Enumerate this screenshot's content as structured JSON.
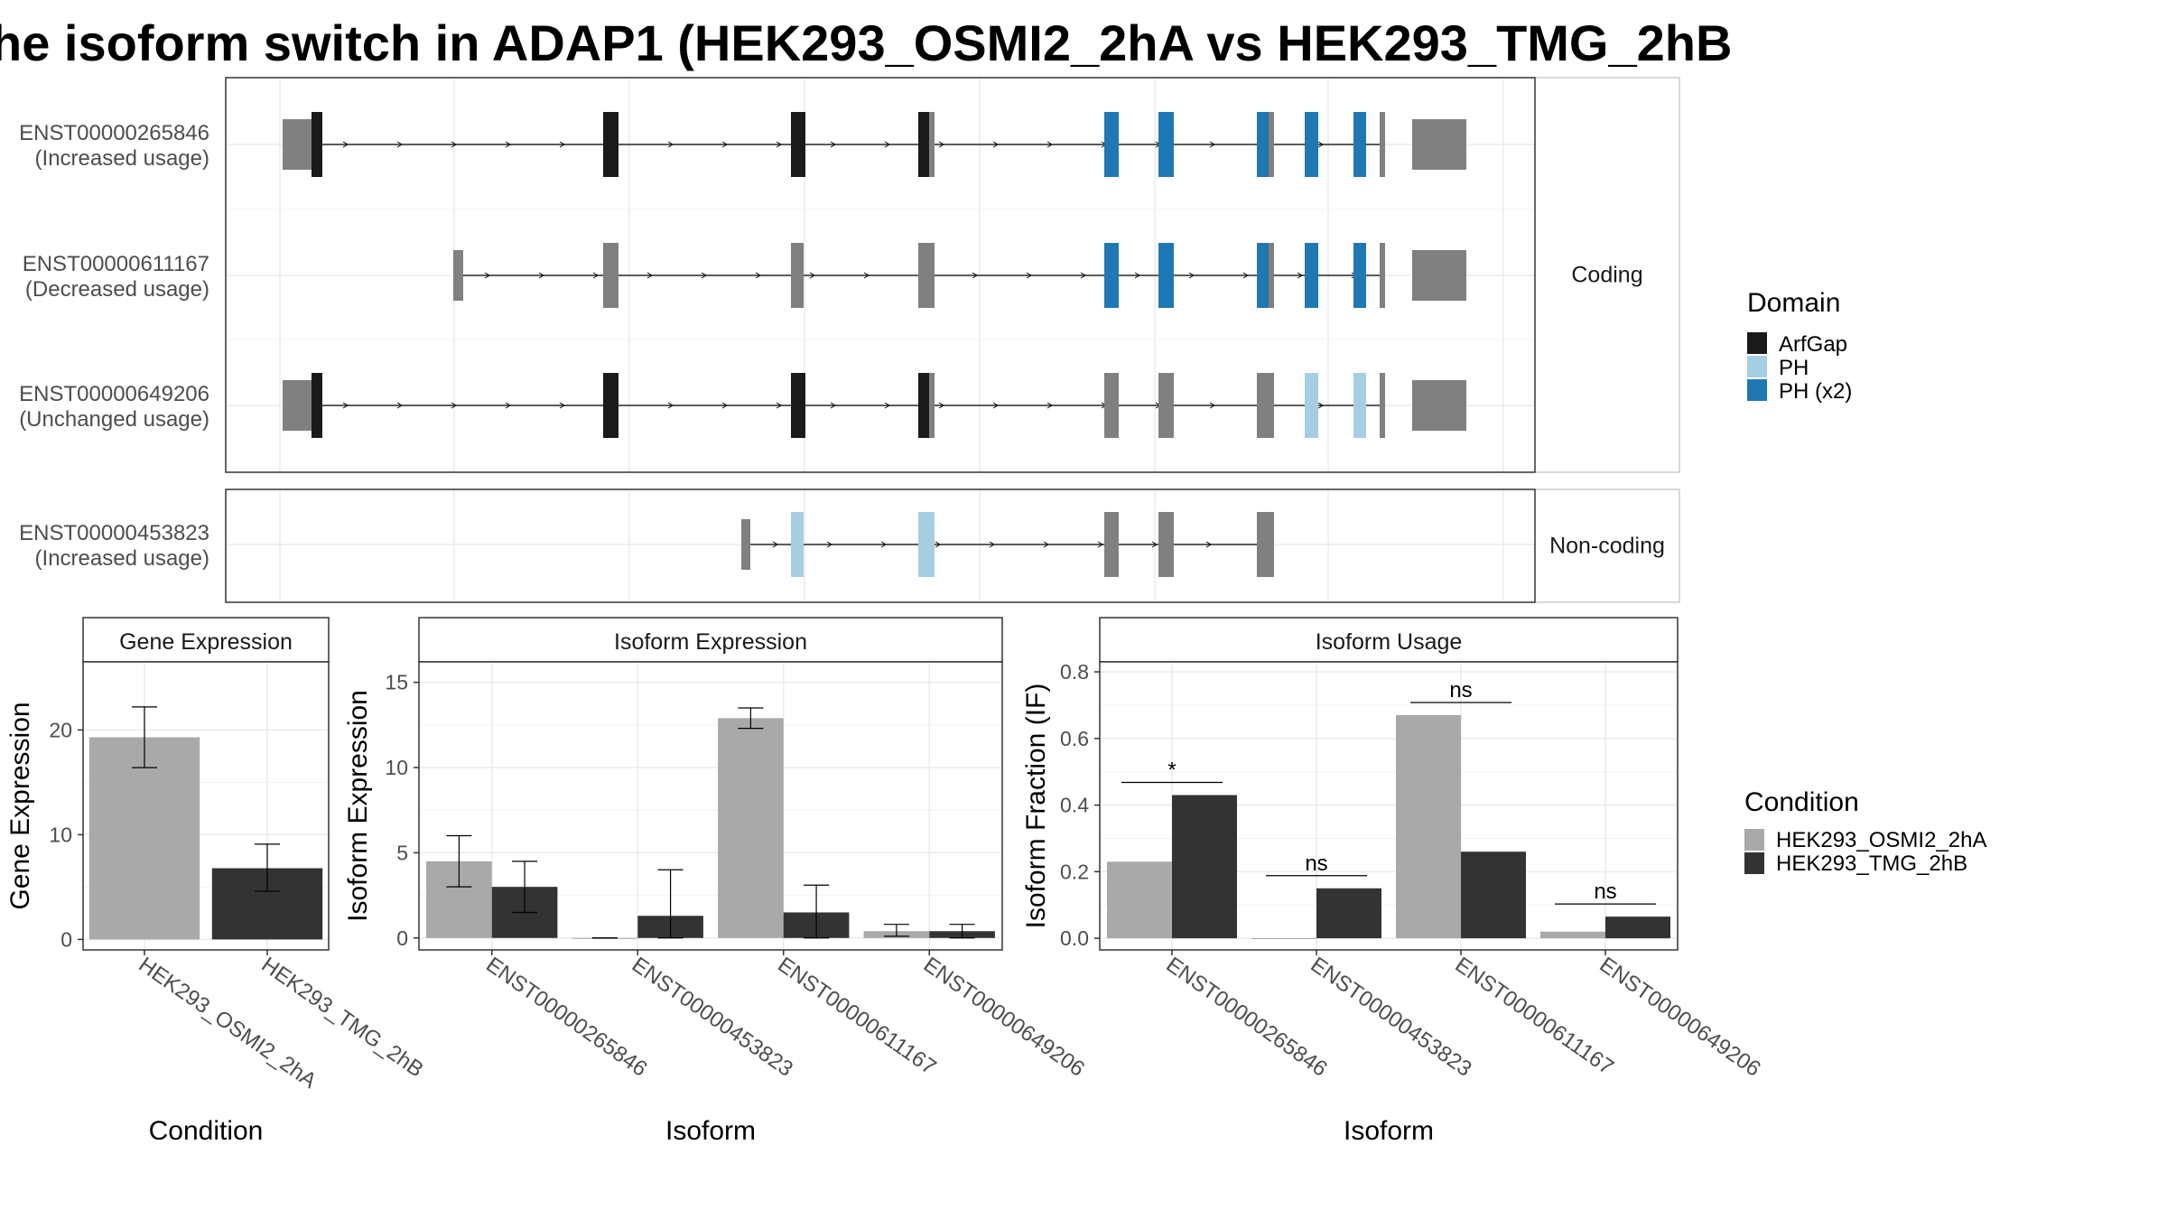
{
  "title": "he isoform switch in ADAP1 (HEK293_OSMI2_2hA vs HEK293_TMG_2hB",
  "colors": {
    "ArfGap": "#1a1a1a",
    "PH": "#a6cee3",
    "PH (x2)": "#1f78b4",
    "exon": "#808080",
    "HEK293_OSMI2_2hA": "#a9a9a9",
    "HEK293_TMG_2hB": "#333333"
  },
  "domain_legend": {
    "title": "Domain",
    "entries": [
      "ArfGap",
      "PH",
      "PH (x2)"
    ]
  },
  "condition_legend": {
    "title": "Condition",
    "entries": [
      "HEK293_OSMI2_2hA",
      "HEK293_TMG_2hB"
    ]
  },
  "structure_panels": [
    {
      "strip": "Coding",
      "transcripts": [
        {
          "label": "ENST00000265846",
          "usage": "(Increased usage)",
          "utr_start": true,
          "domains": [
            "ArfGap",
            "ArfGap",
            "ArfGap",
            "ArfGap",
            "PH (x2)",
            "PH (x2)",
            "PH (x2)",
            "PH (x2)",
            "PH (x2)",
            "PH (x2)"
          ]
        },
        {
          "label": "ENST00000611167",
          "usage": "(Decreased usage)",
          "utr_start": false,
          "domains": [
            "",
            "",
            "",
            "",
            "PH (x2)",
            "PH (x2)",
            "PH (x2)",
            "PH (x2)",
            "PH (x2)",
            "PH (x2)"
          ]
        },
        {
          "label": "ENST00000649206",
          "usage": "(Unchanged usage)",
          "utr_start": true,
          "domains": [
            "ArfGap",
            "ArfGap",
            "ArfGap",
            "ArfGap",
            "",
            "",
            "",
            "PH",
            "PH",
            "PH"
          ]
        }
      ]
    },
    {
      "strip": "Non-coding",
      "transcripts": [
        {
          "label": "ENST00000453823",
          "usage": "(Increased usage)",
          "domains": [
            "PH",
            "PH",
            "PH"
          ]
        }
      ]
    }
  ],
  "chart_data": [
    {
      "type": "bar",
      "title": "Gene Expression",
      "xlabel": "Condition",
      "ylabel": "Gene Expression",
      "categories": [
        "HEK293_OSMI2_2hA",
        "HEK293_TMG_2hB"
      ],
      "values": [
        19.3,
        6.8
      ],
      "error_low": [
        16.4,
        4.6
      ],
      "error_high": [
        22.2,
        9.1
      ],
      "ylim": [
        -1,
        26.5
      ],
      "yticks": [
        0,
        10,
        20
      ]
    },
    {
      "type": "bar",
      "title": "Isoform Expression",
      "xlabel": "Isoform",
      "ylabel": "Isoform Expression",
      "categories": [
        "ENST00000265846",
        "ENST00000453823",
        "ENST00000611167",
        "ENST00000649206"
      ],
      "series": [
        {
          "name": "HEK293_OSMI2_2hA",
          "values": [
            4.5,
            0.0,
            12.9,
            0.4
          ],
          "error_low": [
            3.0,
            0.0,
            12.3,
            0.1
          ],
          "error_high": [
            6.0,
            0.0,
            13.5,
            0.8
          ]
        },
        {
          "name": "HEK293_TMG_2hB",
          "values": [
            3.0,
            1.3,
            1.5,
            0.4
          ],
          "error_low": [
            1.5,
            0.0,
            0.0,
            0.0
          ],
          "error_high": [
            4.5,
            4.0,
            3.1,
            0.8
          ]
        }
      ],
      "ylim": [
        -0.7,
        16.2
      ],
      "yticks": [
        0,
        5,
        10,
        15
      ]
    },
    {
      "type": "bar",
      "title": "Isoform Usage",
      "xlabel": "Isoform",
      "ylabel": "Isoform Fraction (IF)",
      "categories": [
        "ENST00000265846",
        "ENST00000453823",
        "ENST00000611167",
        "ENST00000649206"
      ],
      "series": [
        {
          "name": "HEK293_OSMI2_2hA",
          "values": [
            0.23,
            0.0,
            0.67,
            0.02
          ]
        },
        {
          "name": "HEK293_TMG_2hB",
          "values": [
            0.43,
            0.15,
            0.26,
            0.065
          ]
        }
      ],
      "significance": [
        "*",
        "ns",
        "ns",
        "ns"
      ],
      "ylim": [
        -0.035,
        0.83
      ],
      "yticks": [
        0.0,
        0.2,
        0.4,
        0.6,
        0.8
      ],
      "ytick_labels": [
        "0.0",
        "0.2",
        "0.4",
        "0.6",
        "0.8"
      ]
    }
  ]
}
